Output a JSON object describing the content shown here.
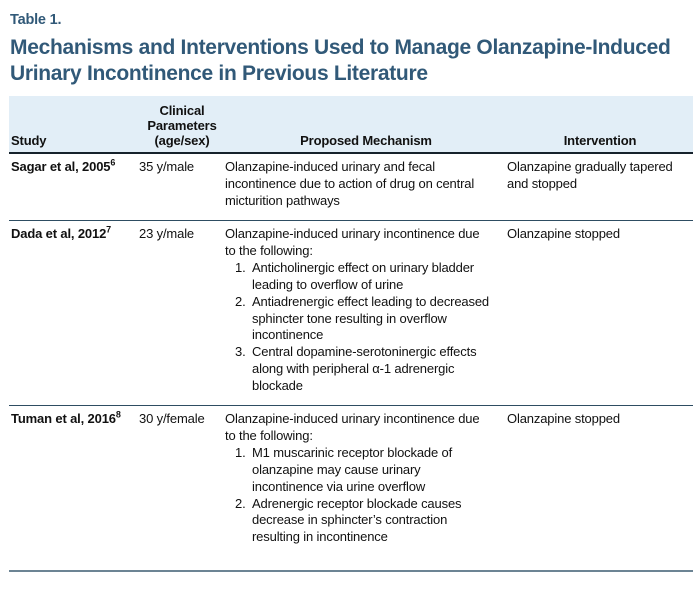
{
  "table_label": "Table 1.",
  "title": "Mechanisms and Interventions Used to Manage Olanzapine-Induced Urinary Incontinence in Previous Literature",
  "columns": {
    "study": "Study",
    "clinical": "Clinical Parameters (age/sex)",
    "mechanism": "Proposed Mechanism",
    "intervention": "Intervention"
  },
  "rows": [
    {
      "study": "Sagar et al, 2005",
      "ref": "6",
      "clinical": "35 y/male",
      "mechanism_intro": "Olanzapine-induced urinary and fecal incontinence due to action of drug on central micturition pathways",
      "mechanism_items": [],
      "intervention": "Olanzapine gradually tapered and stopped"
    },
    {
      "study": "Dada et al, 2012",
      "ref": "7",
      "clinical": "23 y/male",
      "mechanism_intro": "Olanzapine-induced urinary incontinence due to the following:",
      "mechanism_items": [
        "Anticholinergic effect on urinary bladder leading to overflow of urine",
        "Antiadrenergic effect leading to decreased sphincter tone resulting in overflow incontinence",
        "Central dopamine-serotoninergic effects along with peripheral α-1 adrenergic blockade"
      ],
      "intervention": "Olanzapine stopped"
    },
    {
      "study": "Tuman et al, 2016",
      "ref": "8",
      "clinical": "30 y/female",
      "mechanism_intro": "Olanzapine-induced urinary incontinence due to the following:",
      "mechanism_items": [
        "M1 muscarinic receptor blockade of olanzapine may cause urinary incontinence via urine overflow",
        "Adrenergic receptor blockade causes decrease in sphincter’s contraction resulting in incontinence"
      ],
      "intervention": "Olanzapine stopped"
    }
  ],
  "colors": {
    "title_blue": "#315978",
    "header_band_bg": "#e2eef7",
    "header_rule": "#16222c",
    "row_separator": "#2e4d62",
    "bottom_rule": "#6c8494",
    "body_text": "#111111"
  }
}
